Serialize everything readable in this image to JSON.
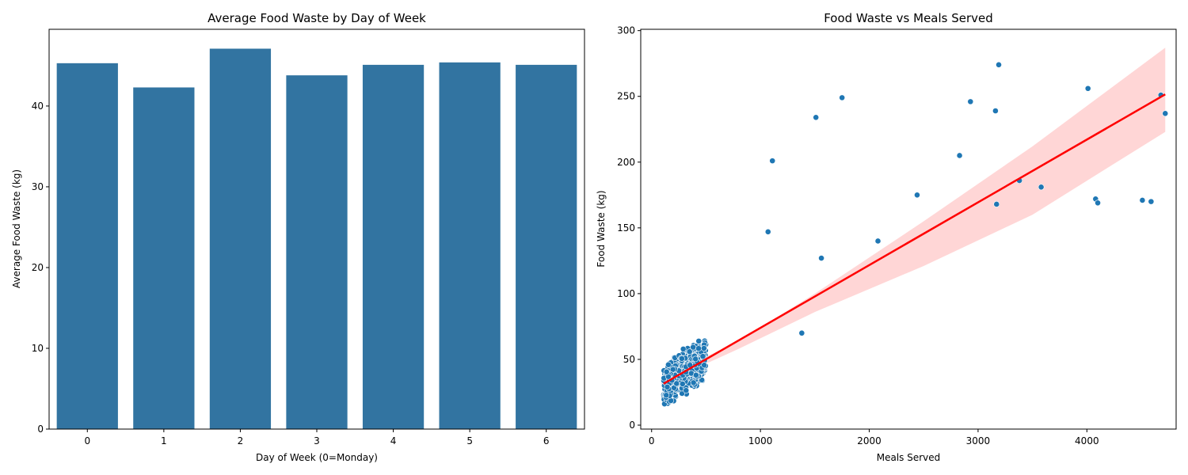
{
  "chart_data": [
    {
      "type": "bar",
      "title": "Average Food Waste by Day of Week",
      "xlabel": "Day of Week (0=Monday)",
      "ylabel": "Average Food Waste (kg)",
      "categories": [
        "0",
        "1",
        "2",
        "3",
        "4",
        "5",
        "6"
      ],
      "values": [
        45.3,
        42.3,
        47.1,
        43.8,
        45.1,
        45.4,
        45.1
      ],
      "ylim": [
        0,
        49.5
      ],
      "yticks": [
        0,
        10,
        20,
        30,
        40
      ],
      "bar_color": "#3274a1",
      "grid": false
    },
    {
      "type": "scatter",
      "title": "Food Waste vs Meals Served",
      "xlabel": "Meals Served",
      "ylabel": "Food Waste (kg)",
      "xlim": [
        -100,
        4820
      ],
      "ylim": [
        -3,
        301
      ],
      "xticks": [
        0,
        1000,
        2000,
        3000,
        4000
      ],
      "yticks": [
        0,
        50,
        100,
        150,
        200,
        250,
        300
      ],
      "point_color": "#1f77b4",
      "grid": false,
      "cluster": {
        "count": 600,
        "x_range": [
          110,
          500
        ],
        "y_center_at_min_x": 30,
        "y_slope_per_meal": 0.055,
        "y_spread": 13,
        "y_min": 11,
        "y_max": 80
      },
      "outliers": [
        {
          "x": 1070,
          "y": 147
        },
        {
          "x": 1110,
          "y": 201
        },
        {
          "x": 1380,
          "y": 70
        },
        {
          "x": 1510,
          "y": 234
        },
        {
          "x": 1560,
          "y": 127
        },
        {
          "x": 1750,
          "y": 249
        },
        {
          "x": 2080,
          "y": 140
        },
        {
          "x": 2440,
          "y": 175
        },
        {
          "x": 2830,
          "y": 205
        },
        {
          "x": 2930,
          "y": 246
        },
        {
          "x": 3160,
          "y": 239
        },
        {
          "x": 3170,
          "y": 168
        },
        {
          "x": 3190,
          "y": 274
        },
        {
          "x": 3380,
          "y": 186
        },
        {
          "x": 3580,
          "y": 181
        },
        {
          "x": 4010,
          "y": 256
        },
        {
          "x": 4080,
          "y": 172
        },
        {
          "x": 4100,
          "y": 169
        },
        {
          "x": 4510,
          "y": 171
        },
        {
          "x": 4590,
          "y": 170
        },
        {
          "x": 4680,
          "y": 251
        },
        {
          "x": 4720,
          "y": 237
        }
      ],
      "regression": {
        "color": "#ff0000",
        "ci_color": "#ffcccc",
        "points": [
          {
            "x": 110,
            "y": 31.5
          },
          {
            "x": 4720,
            "y": 251.5
          }
        ],
        "ci_band": [
          {
            "x": 110,
            "low": 27,
            "high": 36
          },
          {
            "x": 400,
            "low": 43,
            "high": 48
          },
          {
            "x": 800,
            "low": 58,
            "high": 64
          },
          {
            "x": 1500,
            "low": 86,
            "high": 100
          },
          {
            "x": 2500,
            "low": 121,
            "high": 155
          },
          {
            "x": 3500,
            "low": 160,
            "high": 212
          },
          {
            "x": 4720,
            "low": 223,
            "high": 287
          }
        ]
      }
    }
  ]
}
